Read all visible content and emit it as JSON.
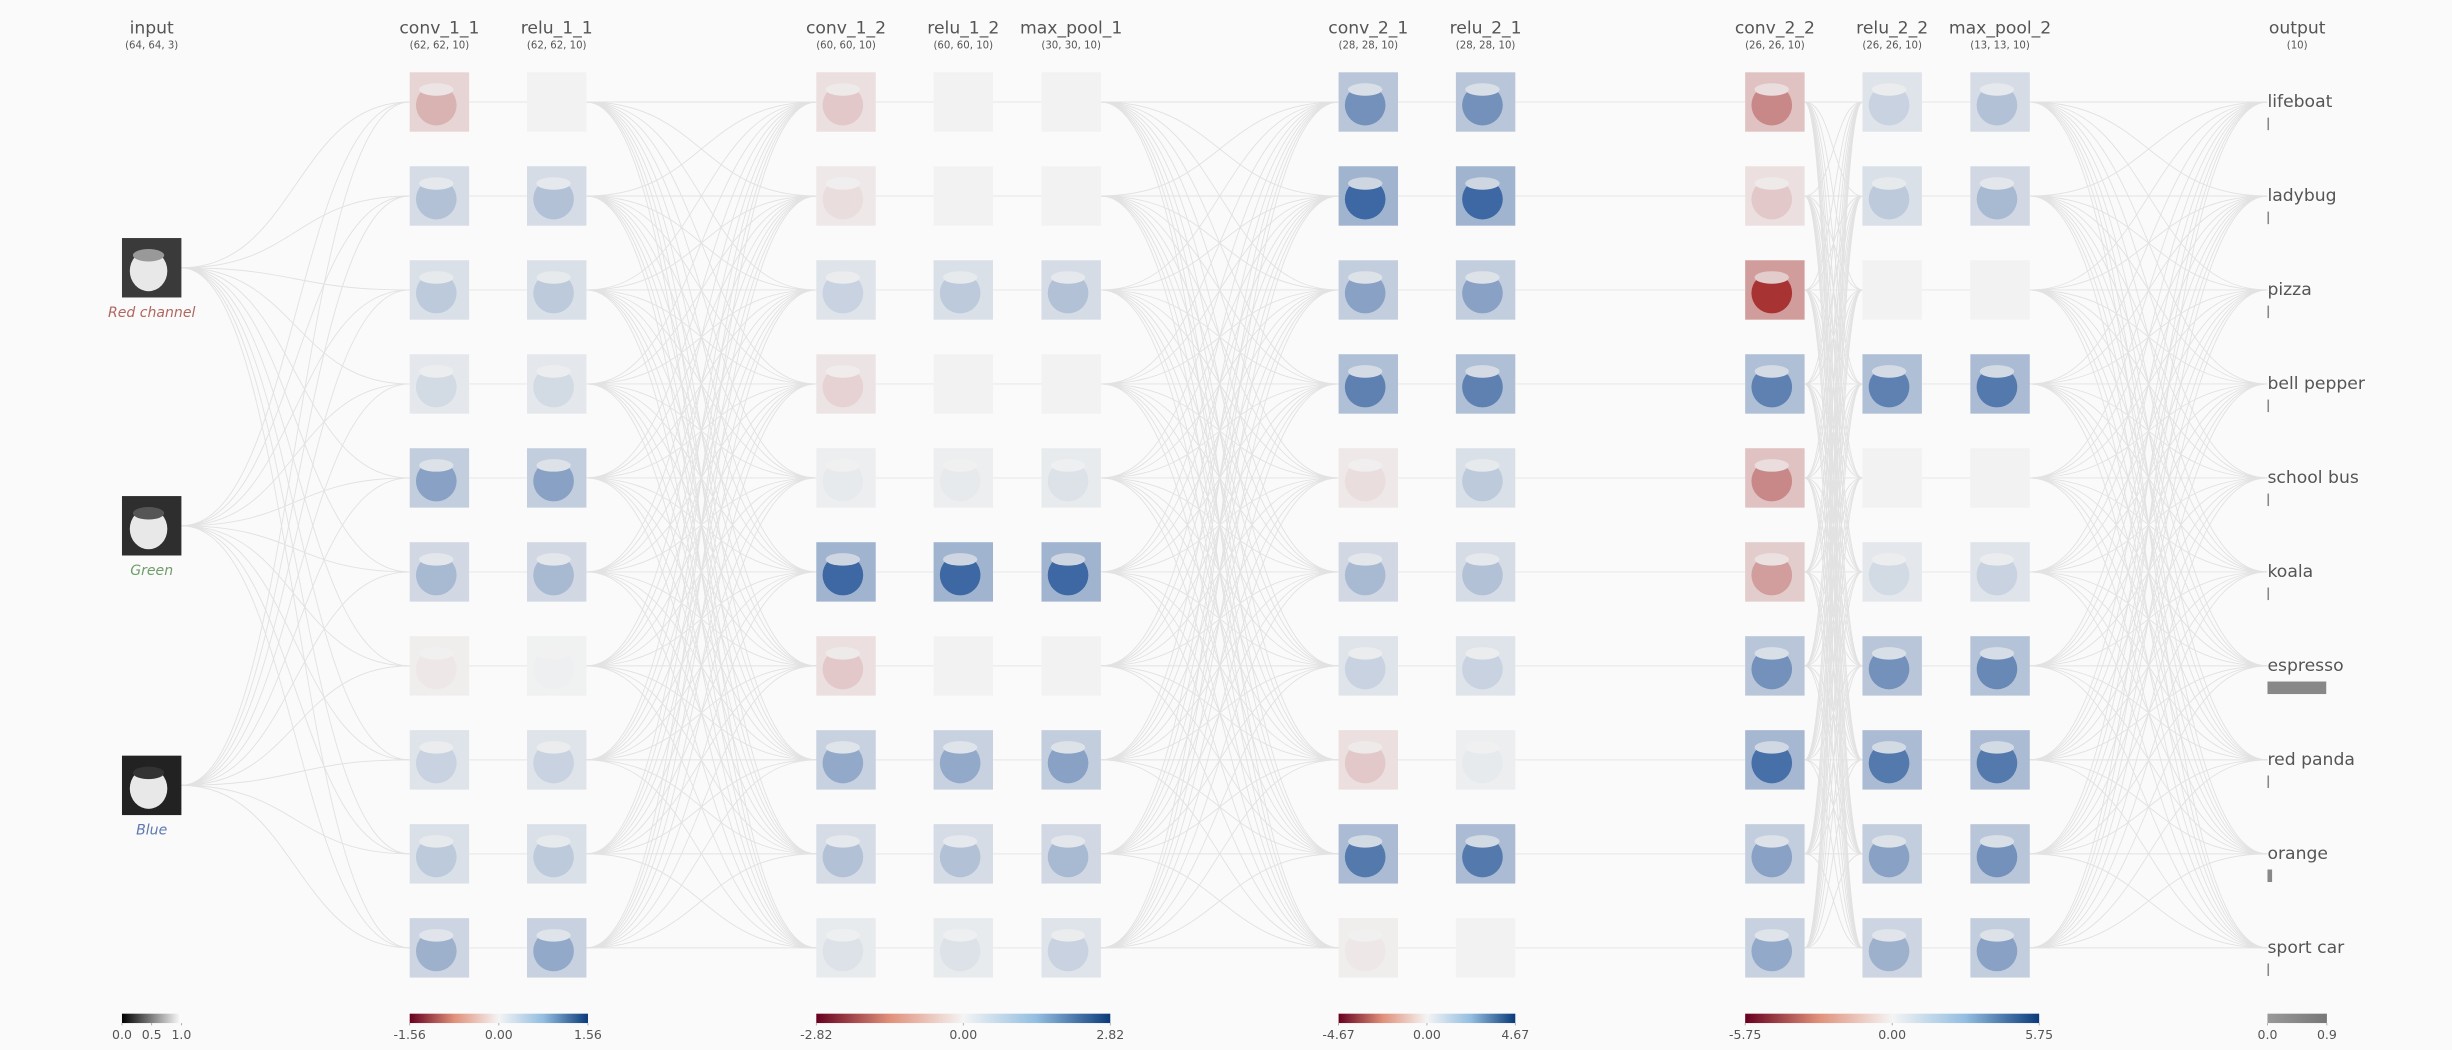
{
  "layers": [
    {
      "name": "input",
      "shape": "(64, 64, 3)"
    },
    {
      "name": "conv_1_1",
      "shape": "(62, 62, 10)"
    },
    {
      "name": "relu_1_1",
      "shape": "(62, 62, 10)"
    },
    {
      "name": "conv_1_2",
      "shape": "(60, 60, 10)"
    },
    {
      "name": "relu_1_2",
      "shape": "(60, 60, 10)"
    },
    {
      "name": "max_pool_1",
      "shape": "(30, 30, 10)"
    },
    {
      "name": "conv_2_1",
      "shape": "(28, 28, 10)"
    },
    {
      "name": "relu_2_1",
      "shape": "(28, 28, 10)"
    },
    {
      "name": "conv_2_2",
      "shape": "(26, 26, 10)"
    },
    {
      "name": "relu_2_2",
      "shape": "(26, 26, 10)"
    },
    {
      "name": "max_pool_2",
      "shape": "(13, 13, 10)"
    },
    {
      "name": "output",
      "shape": "(10)"
    }
  ],
  "input_channels": [
    {
      "label": "Red channel",
      "color": "#b0675f"
    },
    {
      "label": "Green",
      "color": "#6e9e6a"
    },
    {
      "label": "Blue",
      "color": "#5d78b0"
    }
  ],
  "output": {
    "classes": [
      "lifeboat",
      "ladybug",
      "pizza",
      "bell pepper",
      "school bus",
      "koala",
      "espresso",
      "red panda",
      "orange",
      "sport car"
    ],
    "values": [
      0,
      0,
      0,
      0.02,
      0,
      0,
      0.89,
      0,
      0.07,
      0
    ],
    "color": "#888888"
  },
  "colorbars": [
    {
      "lim": [
        0,
        1
      ],
      "ticks": [
        {
          "value": 0,
          "label": "0.0"
        },
        0.5,
        {
          "value": 1,
          "label": "1.0"
        }
      ]
    },
    {
      "lim": [
        -1.56,
        1.56
      ],
      "ticks": [
        -1.56,
        {
          "value": 0,
          "label": "0.00"
        },
        1.56
      ]
    },
    {
      "lim": [
        -2.82,
        2.82
      ],
      "ticks": [
        -2.82,
        {
          "value": 0,
          "label": "0.00"
        },
        2.82
      ]
    },
    {
      "lim": [
        -4.67,
        4.67
      ],
      "ticks": [
        -4.67,
        {
          "value": 0,
          "label": "0.00"
        },
        4.67
      ]
    },
    {
      "lim": [
        -5.75,
        5.75
      ],
      "ticks": [
        -5.75,
        {
          "value": 0,
          "label": "0.00"
        },
        5.75
      ]
    },
    {
      "lim": [
        0,
        0.9
      ],
      "ticks": [
        {
          "value": 0,
          "label": "0.0"
        },
        0.9
      ]
    }
  ]
}
